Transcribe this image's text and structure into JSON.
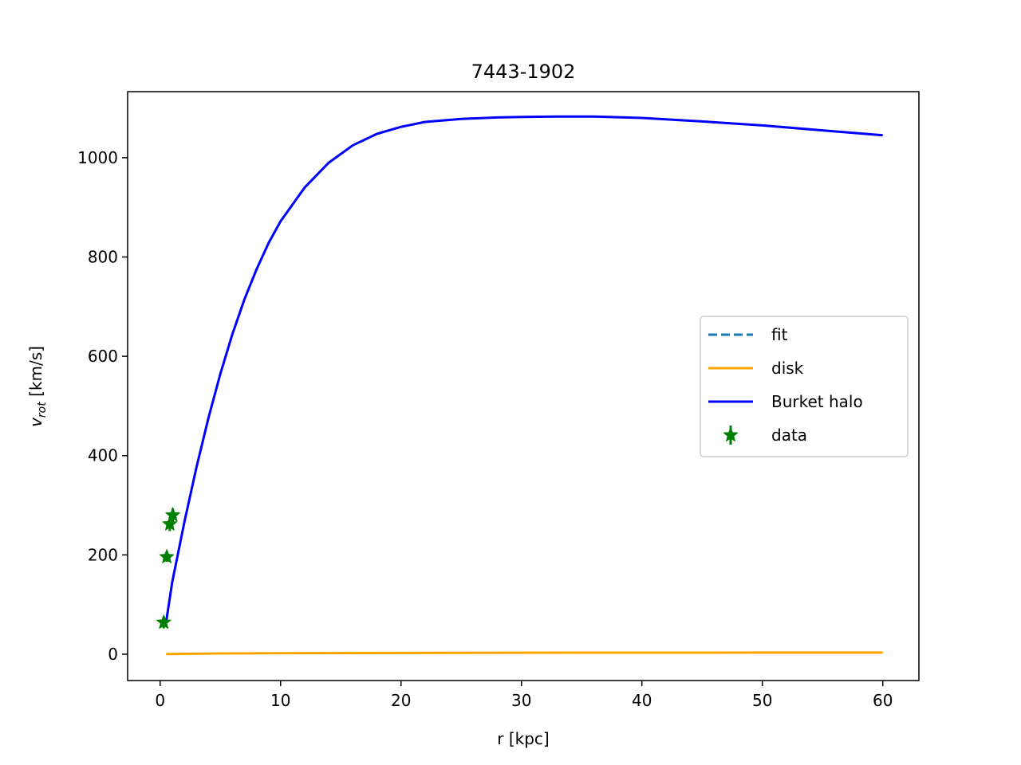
{
  "chart_data": {
    "type": "line",
    "title": "7443-1902",
    "xlabel": "r [kpc]",
    "ylabel_main": "v",
    "ylabel_sub": "rot",
    "ylabel_rest": " [km/s]",
    "xlim": [
      -2.7,
      63.0
    ],
    "ylim": [
      -53,
      1133
    ],
    "xticks": [
      0,
      10,
      20,
      30,
      40,
      50,
      60
    ],
    "yticks": [
      0,
      200,
      400,
      600,
      800,
      1000
    ],
    "legend_position": "center-right",
    "series": [
      {
        "name": "fit",
        "style": "dashed",
        "color": "#1f77b4",
        "x": [],
        "y": []
      },
      {
        "name": "disk",
        "style": "solid",
        "color": "#ffa500",
        "x": [
          0.5,
          5,
          10,
          20,
          30,
          40,
          50,
          60
        ],
        "y": [
          0.5,
          1.5,
          2.0,
          2.6,
          3.0,
          3.2,
          3.3,
          3.3
        ]
      },
      {
        "name": "Burket halo",
        "style": "solid",
        "color": "#0000ff",
        "x": [
          0.5,
          1,
          2,
          3,
          4,
          5,
          6,
          7,
          8,
          9,
          10,
          12,
          14,
          16,
          18,
          20,
          22,
          25,
          28,
          30,
          33,
          36,
          40,
          45,
          50,
          55,
          60
        ],
        "y": [
          65,
          145,
          265,
          375,
          475,
          565,
          645,
          715,
          775,
          828,
          872,
          940,
          990,
          1025,
          1048,
          1062,
          1072,
          1078,
          1081,
          1082,
          1083,
          1083,
          1080,
          1073,
          1065,
          1055,
          1045
        ]
      },
      {
        "name": "data",
        "style": "markers",
        "marker": "star",
        "color": "#008000",
        "x": [
          0.3,
          0.55,
          0.8,
          1.05
        ],
        "y": [
          64,
          196,
          262,
          280
        ],
        "yerr": [
          12,
          10,
          14,
          14
        ]
      }
    ]
  }
}
